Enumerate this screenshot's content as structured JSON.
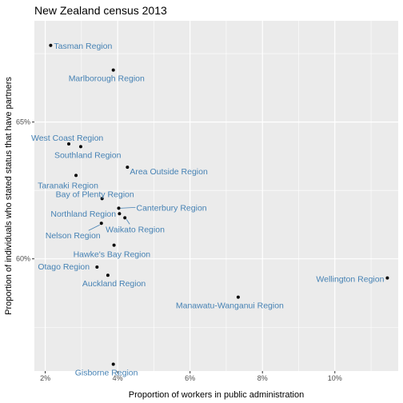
{
  "chart_data": {
    "type": "scatter",
    "title": "New Zealand census 2013",
    "xlabel": "Proportion of workers in public administration",
    "ylabel": "Proportion of individuals who stated status that have partners",
    "xlim": [
      1.7,
      11.75
    ],
    "ylim": [
      55.9,
      68.7
    ],
    "x_ticks": [
      2,
      4,
      6,
      8,
      10
    ],
    "x_tick_labels": [
      "2%",
      "4%",
      "6%",
      "8%",
      "10%"
    ],
    "y_ticks": [
      60,
      65
    ],
    "y_tick_labels": [
      "60%",
      "65%"
    ],
    "grid": true,
    "label_color": "#4682B4",
    "point_color": "#000000",
    "panel_color": "#EBEBEB",
    "points": [
      {
        "label": "Tasman Region",
        "x": 2.15,
        "y": 67.8
      },
      {
        "label": "Marlborough Region",
        "x": 3.88,
        "y": 66.9
      },
      {
        "label": "West Coast Region",
        "x": 2.65,
        "y": 64.2
      },
      {
        "label": "Southland Region",
        "x": 2.98,
        "y": 64.1
      },
      {
        "label": "Area Outside Region",
        "x": 4.27,
        "y": 63.35
      },
      {
        "label": "Taranaki Region",
        "x": 2.85,
        "y": 63.05
      },
      {
        "label": "Bay of Plenty Region",
        "x": 3.57,
        "y": 62.2
      },
      {
        "label": "Canterbury Region",
        "x": 4.03,
        "y": 61.85
      },
      {
        "label": "Northland Region",
        "x": 4.05,
        "y": 61.65
      },
      {
        "label": "Waikato Region",
        "x": 4.2,
        "y": 61.5
      },
      {
        "label": "Nelson Region",
        "x": 3.55,
        "y": 61.3
      },
      {
        "label": "Hawke's Bay Region",
        "x": 3.9,
        "y": 60.5
      },
      {
        "label": "Otago Region",
        "x": 3.43,
        "y": 59.7
      },
      {
        "label": "Auckland Region",
        "x": 3.73,
        "y": 59.4
      },
      {
        "label": "Wellington Region",
        "x": 11.45,
        "y": 59.3
      },
      {
        "label": "Manawatu-Wanganui Region",
        "x": 7.33,
        "y": 58.6
      },
      {
        "label": "Gisborne Region",
        "x": 3.88,
        "y": 56.15
      }
    ]
  }
}
